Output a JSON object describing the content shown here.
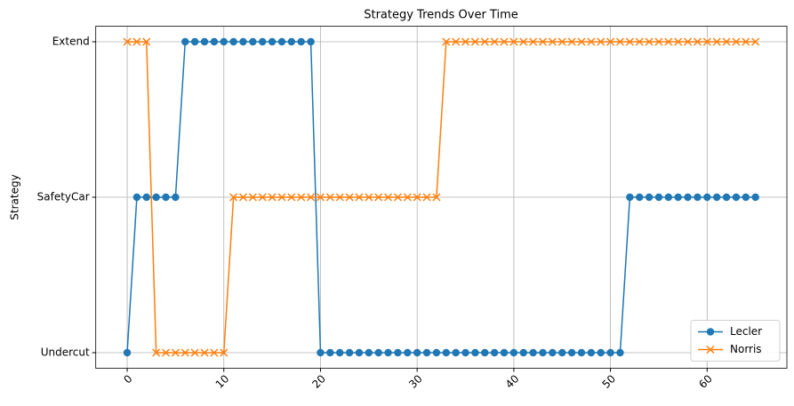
{
  "chart_data": {
    "type": "line",
    "title": "Strategy Trends Over Time",
    "y_label": "Strategy",
    "x": [
      0,
      1,
      2,
      3,
      4,
      5,
      6,
      7,
      8,
      9,
      10,
      11,
      12,
      13,
      14,
      15,
      16,
      17,
      18,
      19,
      20,
      21,
      22,
      23,
      24,
      25,
      26,
      27,
      28,
      29,
      30,
      31,
      32,
      33,
      34,
      35,
      36,
      37,
      38,
      39,
      40,
      41,
      42,
      43,
      44,
      45,
      46,
      47,
      48,
      49,
      50,
      51,
      52,
      53,
      54,
      55,
      56,
      57,
      58,
      59,
      60,
      61,
      62,
      63,
      64,
      65
    ],
    "series": [
      {
        "name": "Lecler",
        "color": "#1f77b4",
        "marker": "o",
        "values": [
          0,
          1,
          1,
          1,
          1,
          1,
          2,
          2,
          2,
          2,
          2,
          2,
          2,
          2,
          2,
          2,
          2,
          2,
          2,
          2,
          0,
          0,
          0,
          0,
          0,
          0,
          0,
          0,
          0,
          0,
          0,
          0,
          0,
          0,
          0,
          0,
          0,
          0,
          0,
          0,
          0,
          0,
          0,
          0,
          0,
          0,
          0,
          0,
          0,
          0,
          0,
          0,
          1,
          1,
          1,
          1,
          1,
          1,
          1,
          1,
          1,
          1,
          1,
          1,
          1,
          1
        ]
      },
      {
        "name": "Norris",
        "color": "#ff7f0e",
        "marker": "x",
        "values": [
          2,
          2,
          2,
          0,
          0,
          0,
          0,
          0,
          0,
          0,
          0,
          1,
          1,
          1,
          1,
          1,
          1,
          1,
          1,
          1,
          1,
          1,
          1,
          1,
          1,
          1,
          1,
          1,
          1,
          1,
          1,
          1,
          1,
          2,
          2,
          2,
          2,
          2,
          2,
          2,
          2,
          2,
          2,
          2,
          2,
          2,
          2,
          2,
          2,
          2,
          2,
          2,
          2,
          2,
          2,
          2,
          2,
          2,
          2,
          2,
          2,
          2,
          2,
          2,
          2,
          2
        ]
      }
    ],
    "xlim": [
      -3.25,
      68.25
    ],
    "xticks": [
      0,
      10,
      20,
      30,
      40,
      50,
      60
    ],
    "ylim": [
      -0.1,
      2.1
    ],
    "yticks": [
      {
        "value": 0,
        "label": "Undercut"
      },
      {
        "value": 1,
        "label": "SafetyCar"
      },
      {
        "value": 2,
        "label": "Extend"
      }
    ],
    "grid": true,
    "legend": "lower right"
  }
}
